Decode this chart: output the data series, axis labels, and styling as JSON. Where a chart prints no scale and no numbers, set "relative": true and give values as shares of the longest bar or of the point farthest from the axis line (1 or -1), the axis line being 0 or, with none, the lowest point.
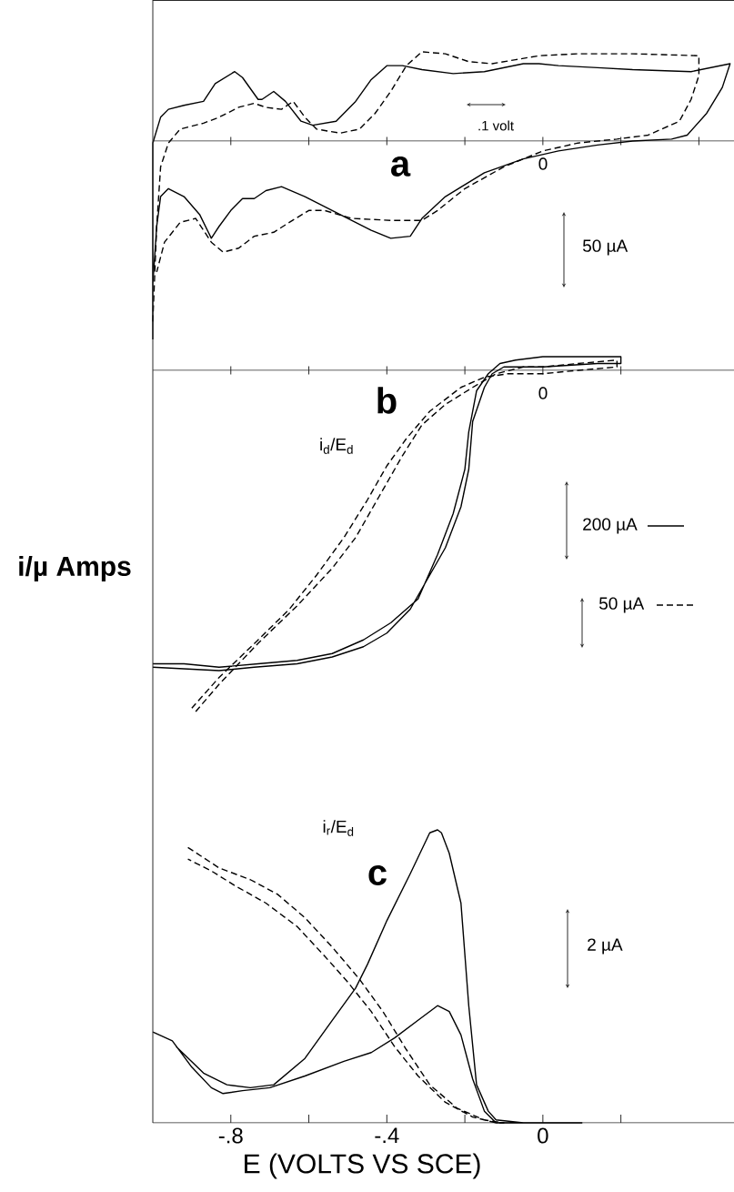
{
  "chart_data": [
    {
      "type": "line",
      "relative": true,
      "xlim": [
        -1.0,
        0.49
      ],
      "tick_labels": false,
      "xticks": [
        {
          "value": -0.8,
          "label": null
        },
        {
          "value": -0.6,
          "label": null
        },
        {
          "value": -0.4,
          "label": null
        },
        {
          "value": -0.2,
          "label": null
        },
        {
          "value": 0,
          "label": null
        },
        {
          "value": 0.2,
          "label": null
        },
        {
          "value": 0.4,
          "label": null
        }
      ],
      "annotations": [
        "a",
        "0",
        ".1 volt",
        "50 µA"
      ],
      "series": [
        {
          "color": "#000000",
          "line_style": "solid",
          "x": [
            -1.0,
            -1.0,
            -0.98,
            -0.96,
            -0.92,
            -0.87,
            -0.84,
            -0.79,
            -0.77,
            -0.73,
            -0.72,
            -0.69,
            -0.66,
            -0.62,
            -0.59,
            -0.53,
            -0.48,
            -0.44,
            -0.4,
            -0.36,
            -0.31,
            -0.23,
            -0.15,
            -0.05,
            -0.01,
            0.04,
            0.14,
            0.23,
            0.38,
            0.48,
            0.46,
            0.42,
            0.37,
            0.33,
            0.23,
            0.14,
            0.04,
            -0.05,
            -0.15,
            -0.25,
            -0.31,
            -0.34,
            -0.39,
            -0.44,
            -0.54,
            -0.61,
            -0.67,
            -0.71,
            -0.74,
            -0.77,
            -0.8,
            -0.83,
            -0.85,
            -0.88,
            -0.92,
            -0.96,
            -0.98,
            -0.99,
            -1.0
          ],
          "values": [
            -1.0,
            -0.01,
            0.12,
            0.16,
            0.18,
            0.2,
            0.29,
            0.35,
            0.32,
            0.21,
            0.21,
            0.25,
            0.2,
            0.1,
            0.08,
            0.1,
            0.2,
            0.31,
            0.38,
            0.38,
            0.36,
            0.34,
            0.35,
            0.39,
            0.39,
            0.38,
            0.37,
            0.36,
            0.35,
            0.39,
            0.27,
            0.14,
            0.03,
            0.01,
            0.0,
            -0.02,
            -0.05,
            -0.09,
            -0.16,
            -0.28,
            -0.39,
            -0.48,
            -0.49,
            -0.45,
            -0.35,
            -0.28,
            -0.23,
            -0.25,
            -0.29,
            -0.29,
            -0.35,
            -0.43,
            -0.49,
            -0.37,
            -0.28,
            -0.24,
            -0.28,
            -0.43,
            -0.72
          ]
        },
        {
          "color": "#000000",
          "line_style": "dashed",
          "x": [
            -1.0,
            -0.99,
            -0.98,
            -0.96,
            -0.93,
            -0.87,
            -0.83,
            -0.78,
            -0.74,
            -0.71,
            -0.67,
            -0.64,
            -0.61,
            -0.58,
            -0.52,
            -0.47,
            -0.43,
            -0.39,
            -0.35,
            -0.31,
            -0.25,
            -0.19,
            -0.13,
            -0.07,
            -0.01,
            0.09,
            0.23,
            0.4,
            0.4,
            0.38,
            0.35,
            0.27,
            0.19,
            0.09,
            0.0,
            -0.1,
            -0.2,
            -0.27,
            -0.31,
            -0.39,
            -0.49,
            -0.56,
            -0.6,
            -0.65,
            -0.69,
            -0.74,
            -0.78,
            -0.82,
            -0.85,
            -0.89,
            -0.93,
            -0.97,
            -0.99
          ],
          "values": [
            -0.91,
            -0.43,
            -0.13,
            -0.01,
            0.06,
            0.09,
            0.12,
            0.17,
            0.19,
            0.17,
            0.16,
            0.2,
            0.12,
            0.06,
            0.04,
            0.06,
            0.14,
            0.25,
            0.38,
            0.45,
            0.44,
            0.4,
            0.39,
            0.41,
            0.43,
            0.44,
            0.44,
            0.43,
            0.33,
            0.21,
            0.1,
            0.03,
            0.01,
            -0.01,
            -0.05,
            -0.13,
            -0.24,
            -0.35,
            -0.4,
            -0.4,
            -0.39,
            -0.35,
            -0.35,
            -0.41,
            -0.46,
            -0.48,
            -0.54,
            -0.56,
            -0.51,
            -0.39,
            -0.41,
            -0.51,
            -0.66
          ]
        }
      ]
    },
    {
      "type": "line",
      "relative": true,
      "xlim": [
        -1.0,
        0.49
      ],
      "tick_labels": false,
      "ylabel": "i/µ Amps",
      "legend": "right",
      "xticks": [
        {
          "value": -0.8,
          "label": null
        },
        {
          "value": -0.6,
          "label": null
        },
        {
          "value": -0.4,
          "label": null
        },
        {
          "value": -0.2,
          "label": null
        },
        {
          "value": 0,
          "label": null
        },
        {
          "value": 0.2,
          "label": null
        }
      ],
      "annotations": [
        "b",
        "0",
        "i$_{d}$/E$_{d}$"
      ],
      "series": [
        {
          "name": "200 µA",
          "color": "#000000",
          "line_style": "solid",
          "x": [
            -1.0,
            -0.92,
            -0.83,
            -0.73,
            -0.63,
            -0.54,
            -0.46,
            -0.39,
            -0.32,
            -0.27,
            -0.23,
            -0.2,
            -0.19,
            -0.17,
            -0.14,
            -0.11,
            -0.07,
            0.0,
            0.13,
            0.2,
            0.2,
            0.14,
            0.0,
            -0.1,
            -0.13,
            -0.15,
            -0.18,
            -0.19,
            -0.21,
            -0.25,
            -0.3,
            -0.34,
            -0.4,
            -0.46,
            -0.54,
            -0.63,
            -0.74,
            -0.83,
            -1.0
          ],
          "values": [
            -0.86,
            -0.86,
            -0.87,
            -0.86,
            -0.85,
            -0.83,
            -0.79,
            -0.74,
            -0.67,
            -0.54,
            -0.42,
            -0.29,
            -0.18,
            -0.06,
            -0.01,
            0.02,
            0.03,
            0.04,
            0.04,
            0.04,
            0.02,
            0.02,
            0.01,
            0.01,
            -0.01,
            -0.05,
            -0.15,
            -0.29,
            -0.4,
            -0.52,
            -0.62,
            -0.7,
            -0.77,
            -0.81,
            -0.84,
            -0.86,
            -0.87,
            -0.88,
            -0.87
          ]
        },
        {
          "name": "50 µA",
          "color": "#000000",
          "line_style": "dashed",
          "x": [
            -0.89,
            -0.83,
            -0.73,
            -0.63,
            -0.54,
            -0.48,
            -0.42,
            -0.36,
            -0.31,
            -0.25,
            -0.18,
            -0.12,
            -0.05,
            0.0,
            0.09,
            0.19,
            0.19,
            0.09,
            0.0,
            -0.09,
            -0.15,
            -0.21,
            -0.29,
            -0.35,
            -0.4,
            -0.45,
            -0.51,
            -0.58,
            -0.65,
            -0.73,
            -0.83,
            -0.9
          ],
          "values": [
            -1.0,
            -0.92,
            -0.8,
            -0.69,
            -0.58,
            -0.49,
            -0.37,
            -0.25,
            -0.16,
            -0.1,
            -0.05,
            -0.01,
            0.01,
            0.01,
            0.02,
            0.03,
            0.01,
            0.0,
            -0.01,
            -0.01,
            -0.02,
            -0.05,
            -0.12,
            -0.2,
            -0.28,
            -0.38,
            -0.49,
            -0.6,
            -0.7,
            -0.79,
            -0.9,
            -0.99
          ]
        }
      ]
    },
    {
      "type": "line",
      "relative": true,
      "xlim": [
        -1.0,
        0.49
      ],
      "tick_labels": "x",
      "xlabel": "E (VOLTS VS SCE)",
      "xticks": [
        {
          "value": -0.8,
          "label": "-.8"
        },
        {
          "value": -0.6,
          "label": null
        },
        {
          "value": -0.4,
          "label": "-.4"
        },
        {
          "value": -0.2,
          "label": null
        },
        {
          "value": 0,
          "label": "0"
        },
        {
          "value": 0.2,
          "label": null
        }
      ],
      "annotations": [
        "c",
        "i$_{r}$/E$_{d}$",
        "2 µA"
      ],
      "series": [
        {
          "color": "#000000",
          "line_style": "solid",
          "x": [
            -1.0,
            -0.95,
            -0.9,
            -0.85,
            -0.82,
            -0.77,
            -0.7,
            -0.61,
            -0.51,
            -0.44,
            -0.38,
            -0.32,
            -0.27,
            -0.24,
            -0.21,
            -0.18,
            -0.15,
            -0.12,
            -0.05,
            0.1,
            -0.05,
            -0.12,
            -0.14,
            -0.17,
            -0.19,
            -0.21,
            -0.24,
            -0.26,
            -0.27,
            -0.29,
            -0.34,
            -0.4,
            -0.45,
            -0.48,
            -0.54,
            -0.61,
            -0.69,
            -0.75,
            -0.81,
            -0.87,
            -0.94
          ],
          "values": [
            0.31,
            0.28,
            0.19,
            0.12,
            0.1,
            0.11,
            0.12,
            0.16,
            0.21,
            0.24,
            0.29,
            0.35,
            0.4,
            0.38,
            0.3,
            0.15,
            0.04,
            0.0,
            0.0,
            0.0,
            0.0,
            0.01,
            0.04,
            0.13,
            0.4,
            0.75,
            0.92,
            0.99,
            1.0,
            0.99,
            0.85,
            0.69,
            0.54,
            0.46,
            0.35,
            0.22,
            0.13,
            0.12,
            0.13,
            0.17,
            0.26
          ]
        },
        {
          "color": "#000000",
          "line_style": "dashed",
          "x": [
            -0.91,
            -0.83,
            -0.75,
            -0.68,
            -0.61,
            -0.54,
            -0.47,
            -0.41,
            -0.35,
            -0.29,
            -0.22,
            -0.15,
            -0.1,
            -0.12,
            -0.18,
            -0.25,
            -0.32,
            -0.38,
            -0.44,
            -0.5,
            -0.56,
            -0.63,
            -0.71,
            -0.79,
            -0.85,
            -0.91
          ],
          "values": [
            0.94,
            0.87,
            0.83,
            0.78,
            0.7,
            0.6,
            0.49,
            0.38,
            0.25,
            0.13,
            0.05,
            0.01,
            0.0,
            0.0,
            0.02,
            0.07,
            0.16,
            0.26,
            0.38,
            0.48,
            0.57,
            0.67,
            0.75,
            0.81,
            0.86,
            0.9
          ]
        }
      ]
    }
  ]
}
